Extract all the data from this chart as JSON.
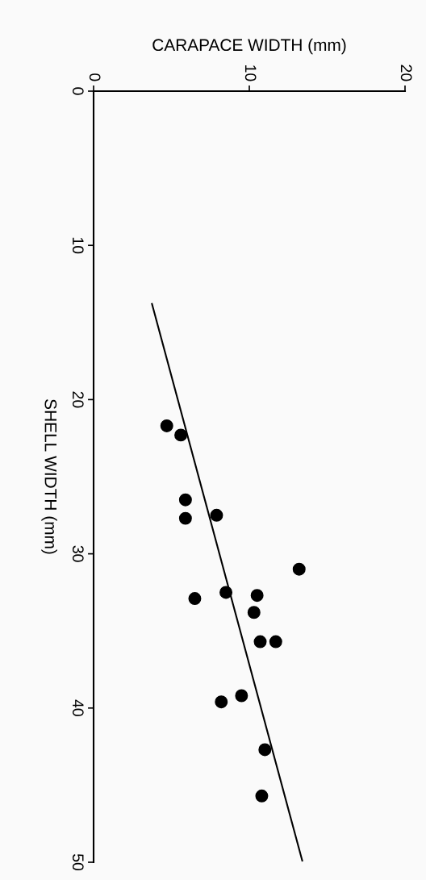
{
  "chart_data": {
    "type": "scatter",
    "xlabel": "CARAPACE WIDTH (mm)",
    "ylabel": "SHELL WIDTH (mm)",
    "xlim": [
      0,
      20
    ],
    "xticks": [
      0,
      10,
      20
    ],
    "ylim": [
      50,
      0
    ],
    "yticks": [
      0,
      10,
      20,
      30,
      40,
      50
    ],
    "grid": false,
    "series": [
      {
        "color": "#000000",
        "marker": "circle",
        "x": [
          4.7,
          5.6,
          5.9,
          5.9,
          7.9,
          13.2,
          6.5,
          8.5,
          10.5,
          10.3,
          10.7,
          11.7,
          9.5,
          8.2,
          11.0,
          10.8
        ],
        "values": [
          21.7,
          22.3,
          26.5,
          27.7,
          27.5,
          31.0,
          32.9,
          32.5,
          32.7,
          33.8,
          35.7,
          35.7,
          39.2,
          39.6,
          42.7,
          45.7
        ]
      },
      {
        "type": "line",
        "color": "#000000",
        "marker": "none",
        "line_style": "solid",
        "x": [
          3.75,
          13.4
        ],
        "values": [
          13.8,
          49.9
        ]
      }
    ]
  }
}
